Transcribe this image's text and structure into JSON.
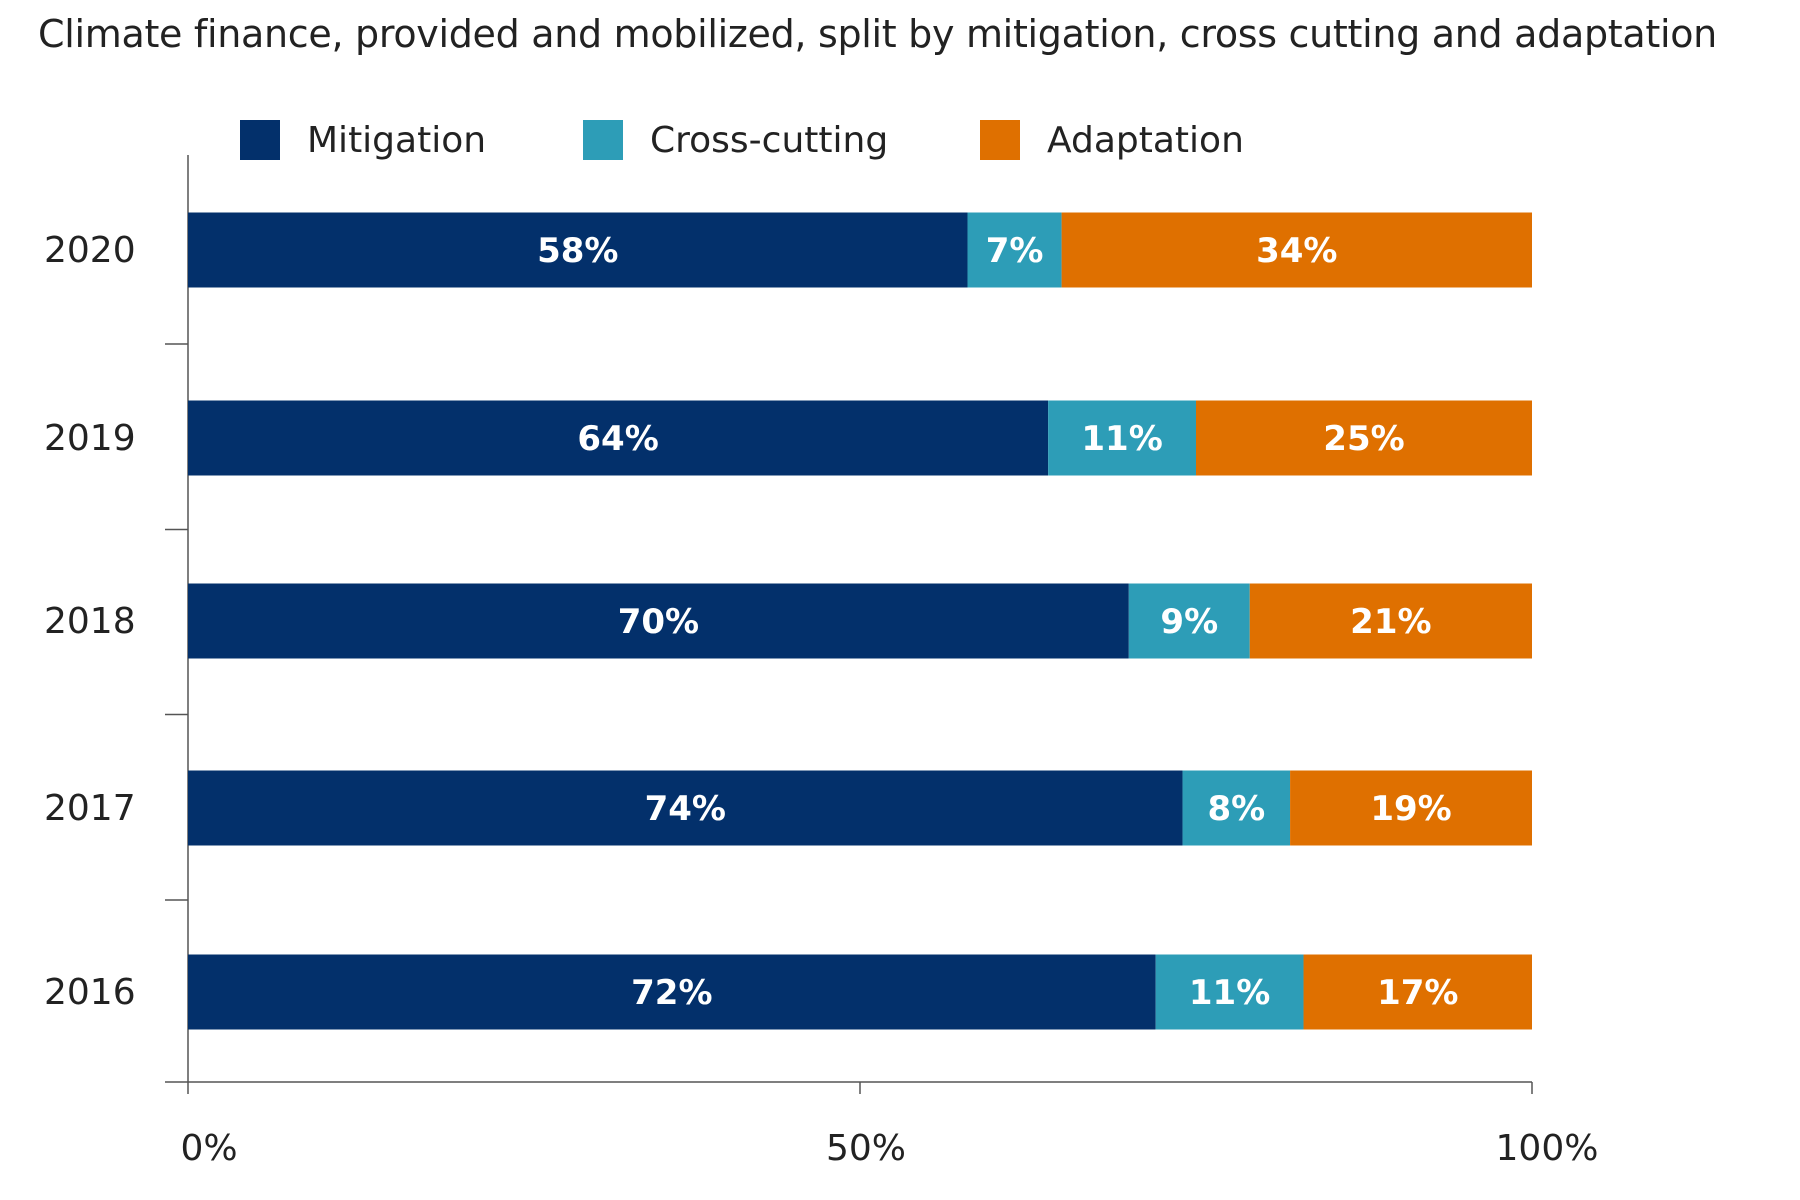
{
  "chart_data": {
    "type": "bar",
    "orientation": "horizontal",
    "stacked": true,
    "title": "Climate finance, provided and mobilized, split by mitigation, cross cutting and adaptation",
    "categories": [
      "2020",
      "2019",
      "2018",
      "2017",
      "2016"
    ],
    "series": [
      {
        "name": "Mitigation",
        "color": "#03306b",
        "values": [
          58,
          64,
          70,
          74,
          72
        ],
        "labels": [
          "58%",
          "64%",
          "70%",
          "74%",
          "72%"
        ]
      },
      {
        "name": "Cross-cutting",
        "color": "#2d9db7",
        "values": [
          7,
          11,
          9,
          8,
          11
        ],
        "labels": [
          "7%",
          "11%",
          "9%",
          "8%",
          "11%"
        ]
      },
      {
        "name": "Adaptation",
        "color": "#df7000",
        "values": [
          34,
          25,
          21,
          19,
          17
        ],
        "labels": [
          "34%",
          "25%",
          "21%",
          "19%",
          "17%"
        ]
      }
    ],
    "xlim": [
      0,
      100
    ],
    "xticks": [
      0,
      50,
      100
    ],
    "xtick_labels": [
      "0%",
      "50%",
      "100%"
    ],
    "legend_position": "top",
    "grid": false
  }
}
